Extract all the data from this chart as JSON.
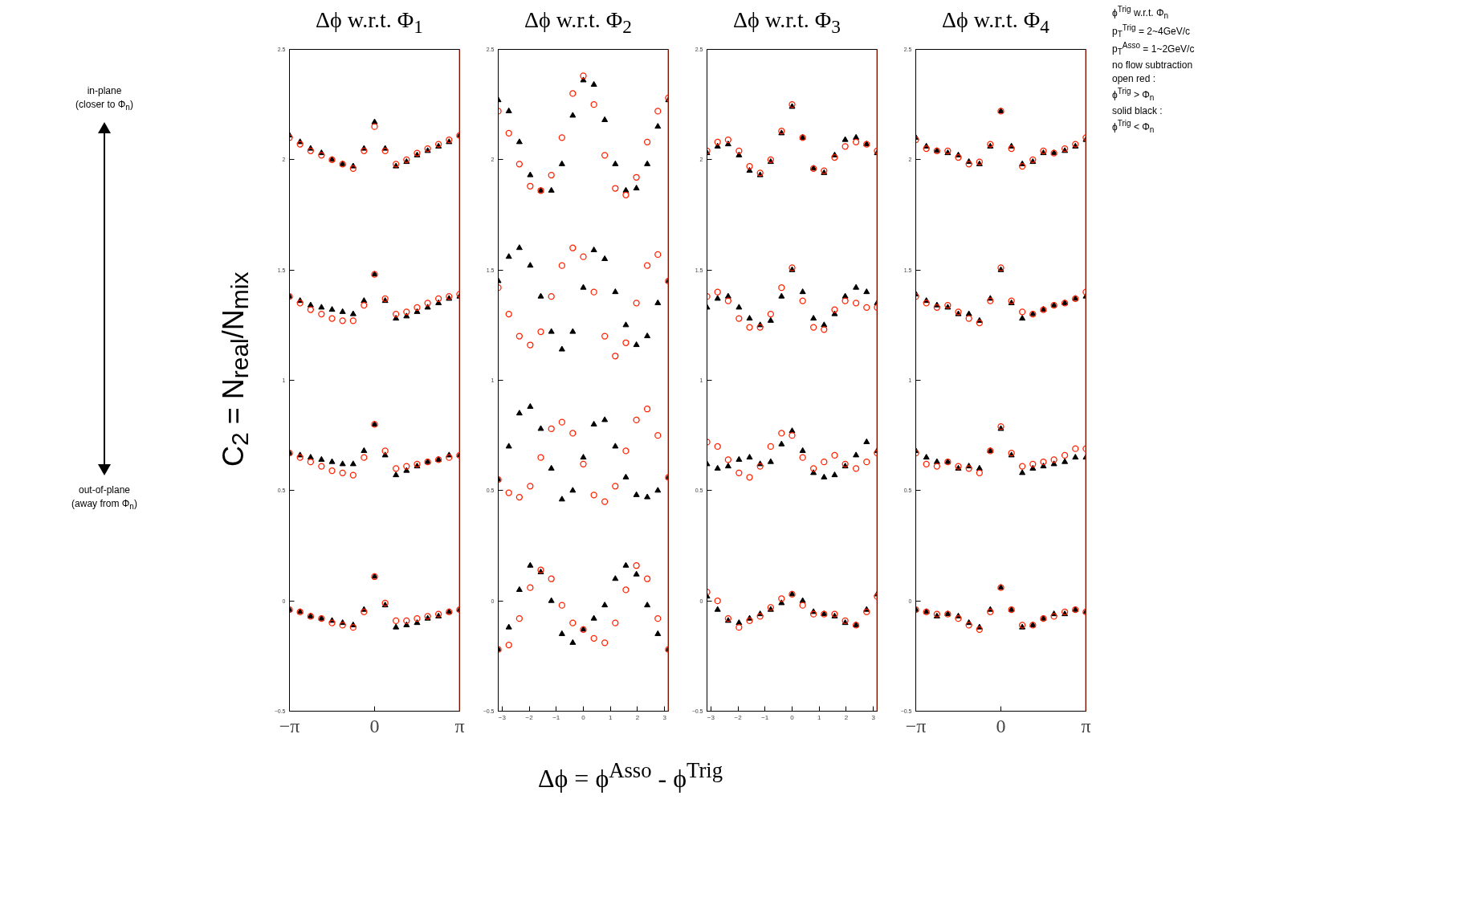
{
  "chart_data": [
    {
      "type": "scatter",
      "title": "Δϕ w.r.t. Φ$_{1}$",
      "ylabel": "C$_{2}$ = N$_{real}$/N$_{mix}$",
      "annotations": [
        "in-plane\n(closer to Φ$_{n}$)",
        "out-of-plane\n(away from Φ$_{n}$)"
      ],
      "x": [
        -3.14,
        -2.75,
        -2.36,
        -1.96,
        -1.57,
        -1.18,
        -0.79,
        -0.39,
        0,
        0.39,
        0.79,
        1.18,
        1.57,
        1.96,
        2.36,
        2.75,
        3.14
      ],
      "xlim": [
        -3.1416,
        3.1416
      ],
      "ylim": [
        -0.5,
        2.5
      ],
      "xticks": [
        {
          "value": -3.1416,
          "label": "−π"
        },
        {
          "value": 0,
          "label": "0"
        },
        {
          "value": 3.1416,
          "label": "π"
        }
      ],
      "yticks": [
        -0.5,
        0,
        0.5,
        1,
        1.5,
        2,
        2.5
      ],
      "grid": false,
      "ref_lines": [
        {
          "axis": "x",
          "value": 3.1416,
          "color": "#ff2200"
        }
      ],
      "series": [
        {
          "color": "#000000",
          "marker": "triangle",
          "values": [
            2.11,
            2.08,
            2.05,
            2.03,
            2.0,
            1.98,
            1.97,
            2.05,
            2.17,
            2.05,
            1.97,
            1.99,
            2.02,
            2.04,
            2.06,
            2.08,
            2.11
          ]
        },
        {
          "color": "#ff2200",
          "marker": "circle",
          "values": [
            2.1,
            2.07,
            2.04,
            2.02,
            2.0,
            1.98,
            1.96,
            2.04,
            2.15,
            2.04,
            1.98,
            2.0,
            2.03,
            2.05,
            2.07,
            2.09,
            2.11
          ]
        },
        {
          "color": "#000000",
          "marker": "triangle",
          "values": [
            1.38,
            1.36,
            1.34,
            1.33,
            1.32,
            1.31,
            1.3,
            1.36,
            1.48,
            1.36,
            1.28,
            1.29,
            1.31,
            1.33,
            1.35,
            1.37,
            1.38
          ]
        },
        {
          "color": "#ff2200",
          "marker": "circle",
          "values": [
            1.38,
            1.35,
            1.32,
            1.3,
            1.28,
            1.27,
            1.27,
            1.34,
            1.48,
            1.37,
            1.3,
            1.31,
            1.33,
            1.35,
            1.37,
            1.38,
            1.39
          ]
        },
        {
          "color": "#000000",
          "marker": "triangle",
          "values": [
            0.67,
            0.66,
            0.65,
            0.64,
            0.63,
            0.62,
            0.62,
            0.68,
            0.8,
            0.66,
            0.57,
            0.59,
            0.61,
            0.63,
            0.64,
            0.66,
            0.66
          ]
        },
        {
          "color": "#ff2200",
          "marker": "circle",
          "values": [
            0.67,
            0.65,
            0.63,
            0.61,
            0.59,
            0.58,
            0.57,
            0.65,
            0.8,
            0.68,
            0.6,
            0.61,
            0.62,
            0.63,
            0.64,
            0.65,
            0.66
          ]
        },
        {
          "color": "#000000",
          "marker": "triangle",
          "values": [
            -0.04,
            -0.05,
            -0.07,
            -0.08,
            -0.09,
            -0.1,
            -0.11,
            -0.04,
            0.11,
            -0.02,
            -0.12,
            -0.11,
            -0.1,
            -0.08,
            -0.07,
            -0.05,
            -0.04
          ]
        },
        {
          "color": "#ff2200",
          "marker": "circle",
          "values": [
            -0.04,
            -0.05,
            -0.07,
            -0.08,
            -0.1,
            -0.11,
            -0.12,
            -0.05,
            0.11,
            -0.01,
            -0.09,
            -0.09,
            -0.08,
            -0.07,
            -0.06,
            -0.05,
            -0.04
          ]
        }
      ]
    },
    {
      "type": "scatter",
      "title": "Δϕ w.r.t. Φ$_{2}$",
      "xlabel": "Δϕ = ϕ$^{Asso}$ - ϕ$^{Trig}$",
      "x": [
        -3.14,
        -2.75,
        -2.36,
        -1.96,
        -1.57,
        -1.18,
        -0.79,
        -0.39,
        0,
        0.39,
        0.79,
        1.18,
        1.57,
        1.96,
        2.36,
        2.75,
        3.14
      ],
      "xlim": [
        -3.1416,
        3.1416
      ],
      "ylim": [
        -0.5,
        2.5
      ],
      "xticks": [
        -3,
        -2,
        -1,
        0,
        1,
        2,
        3
      ],
      "yticks": [
        -0.5,
        0,
        0.5,
        1,
        1.5,
        2,
        2.5
      ],
      "grid": false,
      "ref_lines": [
        {
          "axis": "x",
          "value": 3.1416,
          "color": "#ff2200"
        }
      ],
      "series": [
        {
          "color": "#000000",
          "marker": "triangle",
          "values": [
            2.27,
            2.22,
            2.08,
            1.93,
            1.86,
            1.86,
            1.98,
            2.2,
            2.36,
            2.34,
            2.18,
            1.98,
            1.86,
            1.87,
            1.98,
            2.15,
            2.27
          ]
        },
        {
          "color": "#ff2200",
          "marker": "circle",
          "values": [
            2.22,
            2.12,
            1.98,
            1.88,
            1.86,
            1.93,
            2.1,
            2.3,
            2.38,
            2.25,
            2.02,
            1.87,
            1.84,
            1.92,
            2.08,
            2.22,
            2.28
          ]
        },
        {
          "color": "#000000",
          "marker": "triangle",
          "values": [
            1.45,
            1.56,
            1.6,
            1.52,
            1.38,
            1.22,
            1.14,
            1.22,
            1.42,
            1.59,
            1.55,
            1.4,
            1.25,
            1.16,
            1.2,
            1.35,
            1.45
          ]
        },
        {
          "color": "#ff2200",
          "marker": "circle",
          "values": [
            1.42,
            1.3,
            1.2,
            1.16,
            1.22,
            1.38,
            1.52,
            1.6,
            1.56,
            1.4,
            1.2,
            1.11,
            1.17,
            1.35,
            1.52,
            1.57,
            1.45
          ]
        },
        {
          "color": "#000000",
          "marker": "triangle",
          "values": [
            0.55,
            0.7,
            0.85,
            0.88,
            0.78,
            0.6,
            0.46,
            0.5,
            0.65,
            0.8,
            0.82,
            0.7,
            0.56,
            0.48,
            0.47,
            0.5,
            0.56
          ]
        },
        {
          "color": "#ff2200",
          "marker": "circle",
          "values": [
            0.55,
            0.49,
            0.47,
            0.52,
            0.65,
            0.78,
            0.81,
            0.76,
            0.62,
            0.48,
            0.45,
            0.52,
            0.68,
            0.82,
            0.87,
            0.75,
            0.56
          ]
        },
        {
          "color": "#000000",
          "marker": "triangle",
          "values": [
            -0.22,
            -0.12,
            0.05,
            0.16,
            0.13,
            0.0,
            -0.15,
            -0.19,
            -0.13,
            -0.08,
            -0.02,
            0.1,
            0.16,
            0.12,
            -0.02,
            -0.15,
            -0.22
          ]
        },
        {
          "color": "#ff2200",
          "marker": "circle",
          "values": [
            -0.22,
            -0.2,
            -0.08,
            0.06,
            0.14,
            0.1,
            -0.02,
            -0.1,
            -0.13,
            -0.17,
            -0.19,
            -0.1,
            0.05,
            0.16,
            0.1,
            -0.08,
            -0.22
          ]
        }
      ]
    },
    {
      "type": "scatter",
      "title": "Δϕ w.r.t. Φ$_{3}$",
      "x": [
        -3.14,
        -2.75,
        -2.36,
        -1.96,
        -1.57,
        -1.18,
        -0.79,
        -0.39,
        0,
        0.39,
        0.79,
        1.18,
        1.57,
        1.96,
        2.36,
        2.75,
        3.14
      ],
      "xlim": [
        -3.1416,
        3.1416
      ],
      "ylim": [
        -0.5,
        2.5
      ],
      "xticks": [
        -3,
        -2,
        -1,
        0,
        1,
        2,
        3
      ],
      "yticks": [
        -0.5,
        0,
        0.5,
        1,
        1.5,
        2,
        2.5
      ],
      "grid": false,
      "ref_lines": [
        {
          "axis": "x",
          "value": 3.1416,
          "color": "#ff2200"
        }
      ],
      "series": [
        {
          "color": "#000000",
          "marker": "triangle",
          "values": [
            2.03,
            2.06,
            2.07,
            2.02,
            1.95,
            1.93,
            1.99,
            2.12,
            2.24,
            2.1,
            1.96,
            1.94,
            2.02,
            2.09,
            2.1,
            2.07,
            2.03
          ]
        },
        {
          "color": "#ff2200",
          "marker": "circle",
          "values": [
            2.04,
            2.08,
            2.09,
            2.04,
            1.97,
            1.94,
            2.0,
            2.13,
            2.25,
            2.1,
            1.96,
            1.95,
            2.01,
            2.06,
            2.08,
            2.07,
            2.04
          ]
        },
        {
          "color": "#000000",
          "marker": "triangle",
          "values": [
            1.33,
            1.37,
            1.38,
            1.33,
            1.28,
            1.25,
            1.27,
            1.38,
            1.5,
            1.4,
            1.28,
            1.25,
            1.3,
            1.38,
            1.42,
            1.4,
            1.35
          ]
        },
        {
          "color": "#ff2200",
          "marker": "circle",
          "values": [
            1.38,
            1.4,
            1.36,
            1.28,
            1.24,
            1.24,
            1.3,
            1.42,
            1.51,
            1.36,
            1.24,
            1.23,
            1.32,
            1.36,
            1.35,
            1.33,
            1.33
          ]
        },
        {
          "color": "#000000",
          "marker": "triangle",
          "values": [
            0.62,
            0.6,
            0.61,
            0.64,
            0.65,
            0.62,
            0.63,
            0.71,
            0.77,
            0.68,
            0.58,
            0.56,
            0.57,
            0.61,
            0.66,
            0.72,
            0.68
          ]
        },
        {
          "color": "#ff2200",
          "marker": "circle",
          "values": [
            0.72,
            0.7,
            0.64,
            0.58,
            0.56,
            0.61,
            0.7,
            0.76,
            0.75,
            0.65,
            0.6,
            0.63,
            0.66,
            0.62,
            0.6,
            0.63,
            0.67
          ]
        },
        {
          "color": "#000000",
          "marker": "triangle",
          "values": [
            0.02,
            -0.04,
            -0.09,
            -0.1,
            -0.08,
            -0.06,
            -0.04,
            -0.01,
            0.03,
            0.0,
            -0.05,
            -0.06,
            -0.07,
            -0.1,
            -0.11,
            -0.04,
            0.03
          ]
        },
        {
          "color": "#ff2200",
          "marker": "circle",
          "values": [
            0.04,
            0.0,
            -0.08,
            -0.12,
            -0.09,
            -0.07,
            -0.03,
            0.01,
            0.03,
            -0.02,
            -0.06,
            -0.06,
            -0.06,
            -0.09,
            -0.11,
            -0.05,
            0.02
          ]
        }
      ]
    },
    {
      "type": "scatter",
      "title": "Δϕ w.r.t. Φ$_{4}$",
      "annotations": [
        "ϕ$^{Trig}$ w.r.t. Φ$_{n}$",
        "p$_{T}$$^{Trig}$ = 2~4GeV/c",
        "p$_{T}$$^{Asso}$ = 1~2GeV/c",
        "no flow subtraction",
        "open red :\nϕ$^{Trig}$ > Φ$_{n}$",
        "solid black :\nϕ$^{Trig}$ < Φ$_{n}$"
      ],
      "x": [
        -3.14,
        -2.75,
        -2.36,
        -1.96,
        -1.57,
        -1.18,
        -0.79,
        -0.39,
        0,
        0.39,
        0.79,
        1.18,
        1.57,
        1.96,
        2.36,
        2.75,
        3.14
      ],
      "xlim": [
        -3.1416,
        3.1416
      ],
      "ylim": [
        -0.5,
        2.5
      ],
      "xticks": [
        {
          "value": -3.1416,
          "label": "−π"
        },
        {
          "value": 0,
          "label": "0"
        },
        {
          "value": 3.1416,
          "label": "π"
        }
      ],
      "yticks": [
        -0.5,
        0,
        0.5,
        1,
        1.5,
        2,
        2.5
      ],
      "grid": false,
      "ref_lines": [
        {
          "axis": "x",
          "value": 3.1416,
          "color": "#ff2200"
        }
      ],
      "series": [
        {
          "color": "#000000",
          "marker": "triangle",
          "values": [
            2.1,
            2.06,
            2.04,
            2.03,
            2.02,
            1.99,
            1.98,
            2.06,
            2.22,
            2.06,
            1.98,
            1.99,
            2.03,
            2.03,
            2.04,
            2.06,
            2.09
          ]
        },
        {
          "color": "#ff2200",
          "marker": "circle",
          "values": [
            2.09,
            2.05,
            2.04,
            2.04,
            2.01,
            1.98,
            1.99,
            2.07,
            2.22,
            2.05,
            1.97,
            2.0,
            2.04,
            2.03,
            2.05,
            2.07,
            2.1
          ]
        },
        {
          "color": "#000000",
          "marker": "triangle",
          "values": [
            1.39,
            1.36,
            1.34,
            1.33,
            1.3,
            1.3,
            1.27,
            1.37,
            1.5,
            1.35,
            1.28,
            1.3,
            1.32,
            1.34,
            1.35,
            1.37,
            1.38
          ]
        },
        {
          "color": "#ff2200",
          "marker": "circle",
          "values": [
            1.38,
            1.35,
            1.33,
            1.34,
            1.31,
            1.28,
            1.26,
            1.36,
            1.51,
            1.36,
            1.31,
            1.3,
            1.32,
            1.34,
            1.35,
            1.37,
            1.4
          ]
        },
        {
          "color": "#000000",
          "marker": "triangle",
          "values": [
            0.68,
            0.65,
            0.63,
            0.63,
            0.6,
            0.61,
            0.6,
            0.68,
            0.78,
            0.66,
            0.58,
            0.6,
            0.61,
            0.62,
            0.63,
            0.65,
            0.65
          ]
        },
        {
          "color": "#ff2200",
          "marker": "circle",
          "values": [
            0.67,
            0.62,
            0.61,
            0.63,
            0.61,
            0.6,
            0.58,
            0.68,
            0.79,
            0.67,
            0.61,
            0.62,
            0.63,
            0.64,
            0.66,
            0.69,
            0.69
          ]
        },
        {
          "color": "#000000",
          "marker": "triangle",
          "values": [
            -0.04,
            -0.05,
            -0.07,
            -0.06,
            -0.07,
            -0.1,
            -0.12,
            -0.04,
            0.06,
            -0.04,
            -0.12,
            -0.11,
            -0.08,
            -0.06,
            -0.06,
            -0.04,
            -0.05
          ]
        },
        {
          "color": "#ff2200",
          "marker": "circle",
          "values": [
            -0.04,
            -0.05,
            -0.06,
            -0.06,
            -0.08,
            -0.11,
            -0.13,
            -0.05,
            0.06,
            -0.04,
            -0.11,
            -0.11,
            -0.08,
            -0.07,
            -0.05,
            -0.04,
            -0.05
          ]
        }
      ]
    }
  ]
}
